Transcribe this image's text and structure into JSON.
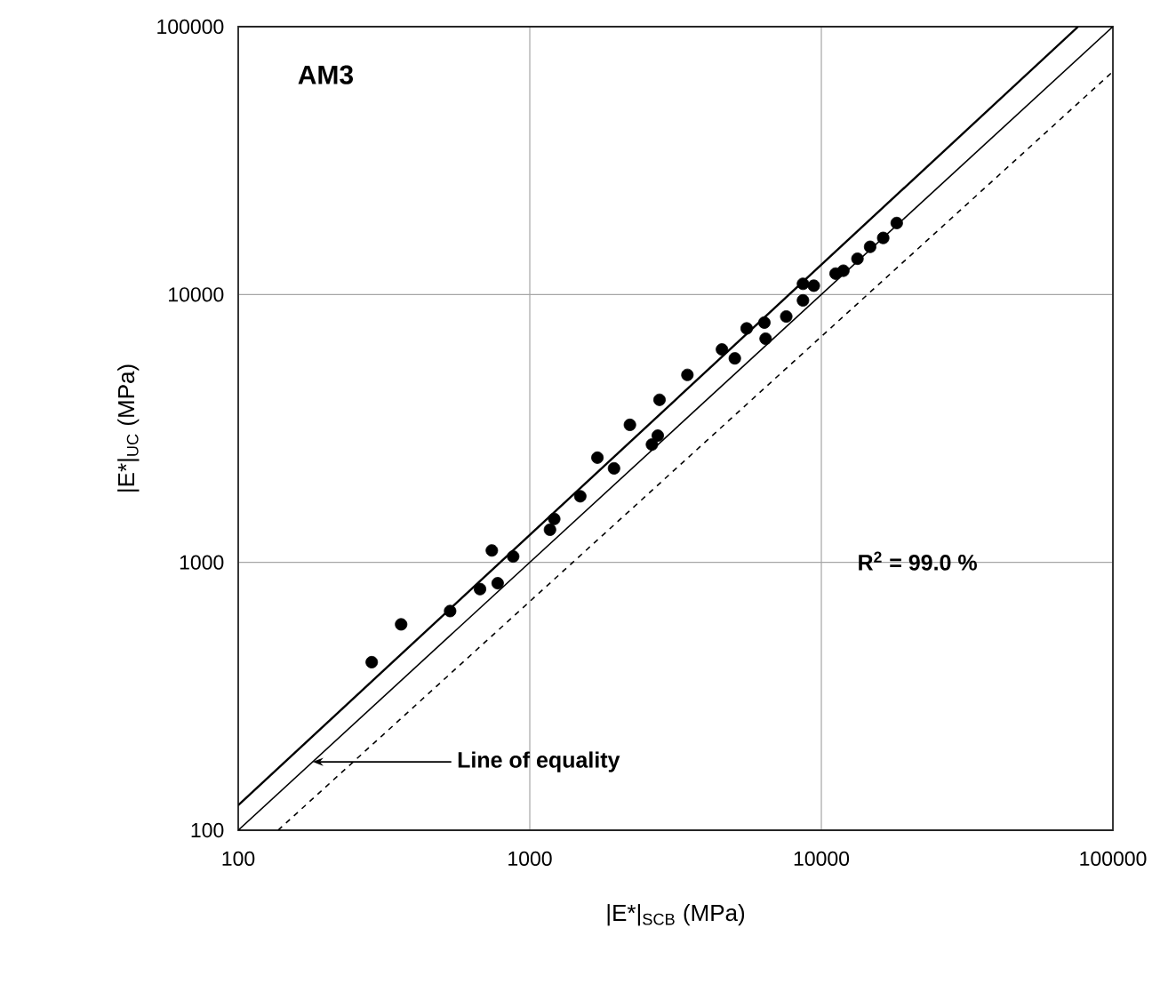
{
  "chart_data": {
    "type": "scatter",
    "xlabel": "|E*|$_{SCB}$ (MPa)",
    "ylabel": "|E*|$_{UC}$ (MPa)",
    "annotations": [
      "AM3",
      "R$^{2}$ = 99.0 %",
      {
        "text": "Line of equality",
        "x": 180,
        "y": 180
      }
    ],
    "series": [
      {
        "color": "#000000",
        "marker": "circle",
        "x": [
          287,
          362,
          533,
          675,
          741,
          776,
          877,
          1173,
          1213,
          1490,
          1706,
          1945,
          2205,
          2624,
          2748,
          2786,
          3472,
          4561,
          5050,
          5545,
          6377,
          6440,
          7580,
          8650,
          8650,
          9420,
          11190,
          11900,
          13300,
          14700,
          16300,
          18140
        ],
        "values": [
          424,
          587,
          658,
          795,
          1108,
          836,
          1052,
          1324,
          1452,
          1765,
          2460,
          2244,
          3262,
          2754,
          2974,
          4045,
          5012,
          6237,
          5777,
          7472,
          7857,
          6843,
          8279,
          9507,
          10965,
          10790,
          11970,
          12270,
          13600,
          15070,
          16270,
          18490
        ]
      },
      {
        "type": "line",
        "color": "#000000",
        "line_style": "solid",
        "marker": "none",
        "x": [
          100,
          76000
        ],
        "values": [
          124,
          100000
        ]
      },
      {
        "type": "line",
        "color": "#000000",
        "line_style": "solid",
        "marker": "none",
        "x": [
          100,
          100000
        ],
        "values": [
          100,
          100000
        ]
      },
      {
        "type": "line",
        "color": "#000000",
        "line_style": "dashed",
        "marker": "none",
        "x": [
          137,
          100000
        ],
        "values": [
          100,
          68000
        ]
      }
    ],
    "xlim": [
      100,
      100000
    ],
    "ylim": [
      100,
      100000
    ],
    "xticks": [
      100,
      1000,
      10000,
      100000
    ],
    "yticks": [
      100,
      1000,
      10000,
      100000
    ],
    "log": "xy",
    "grid": true
  }
}
